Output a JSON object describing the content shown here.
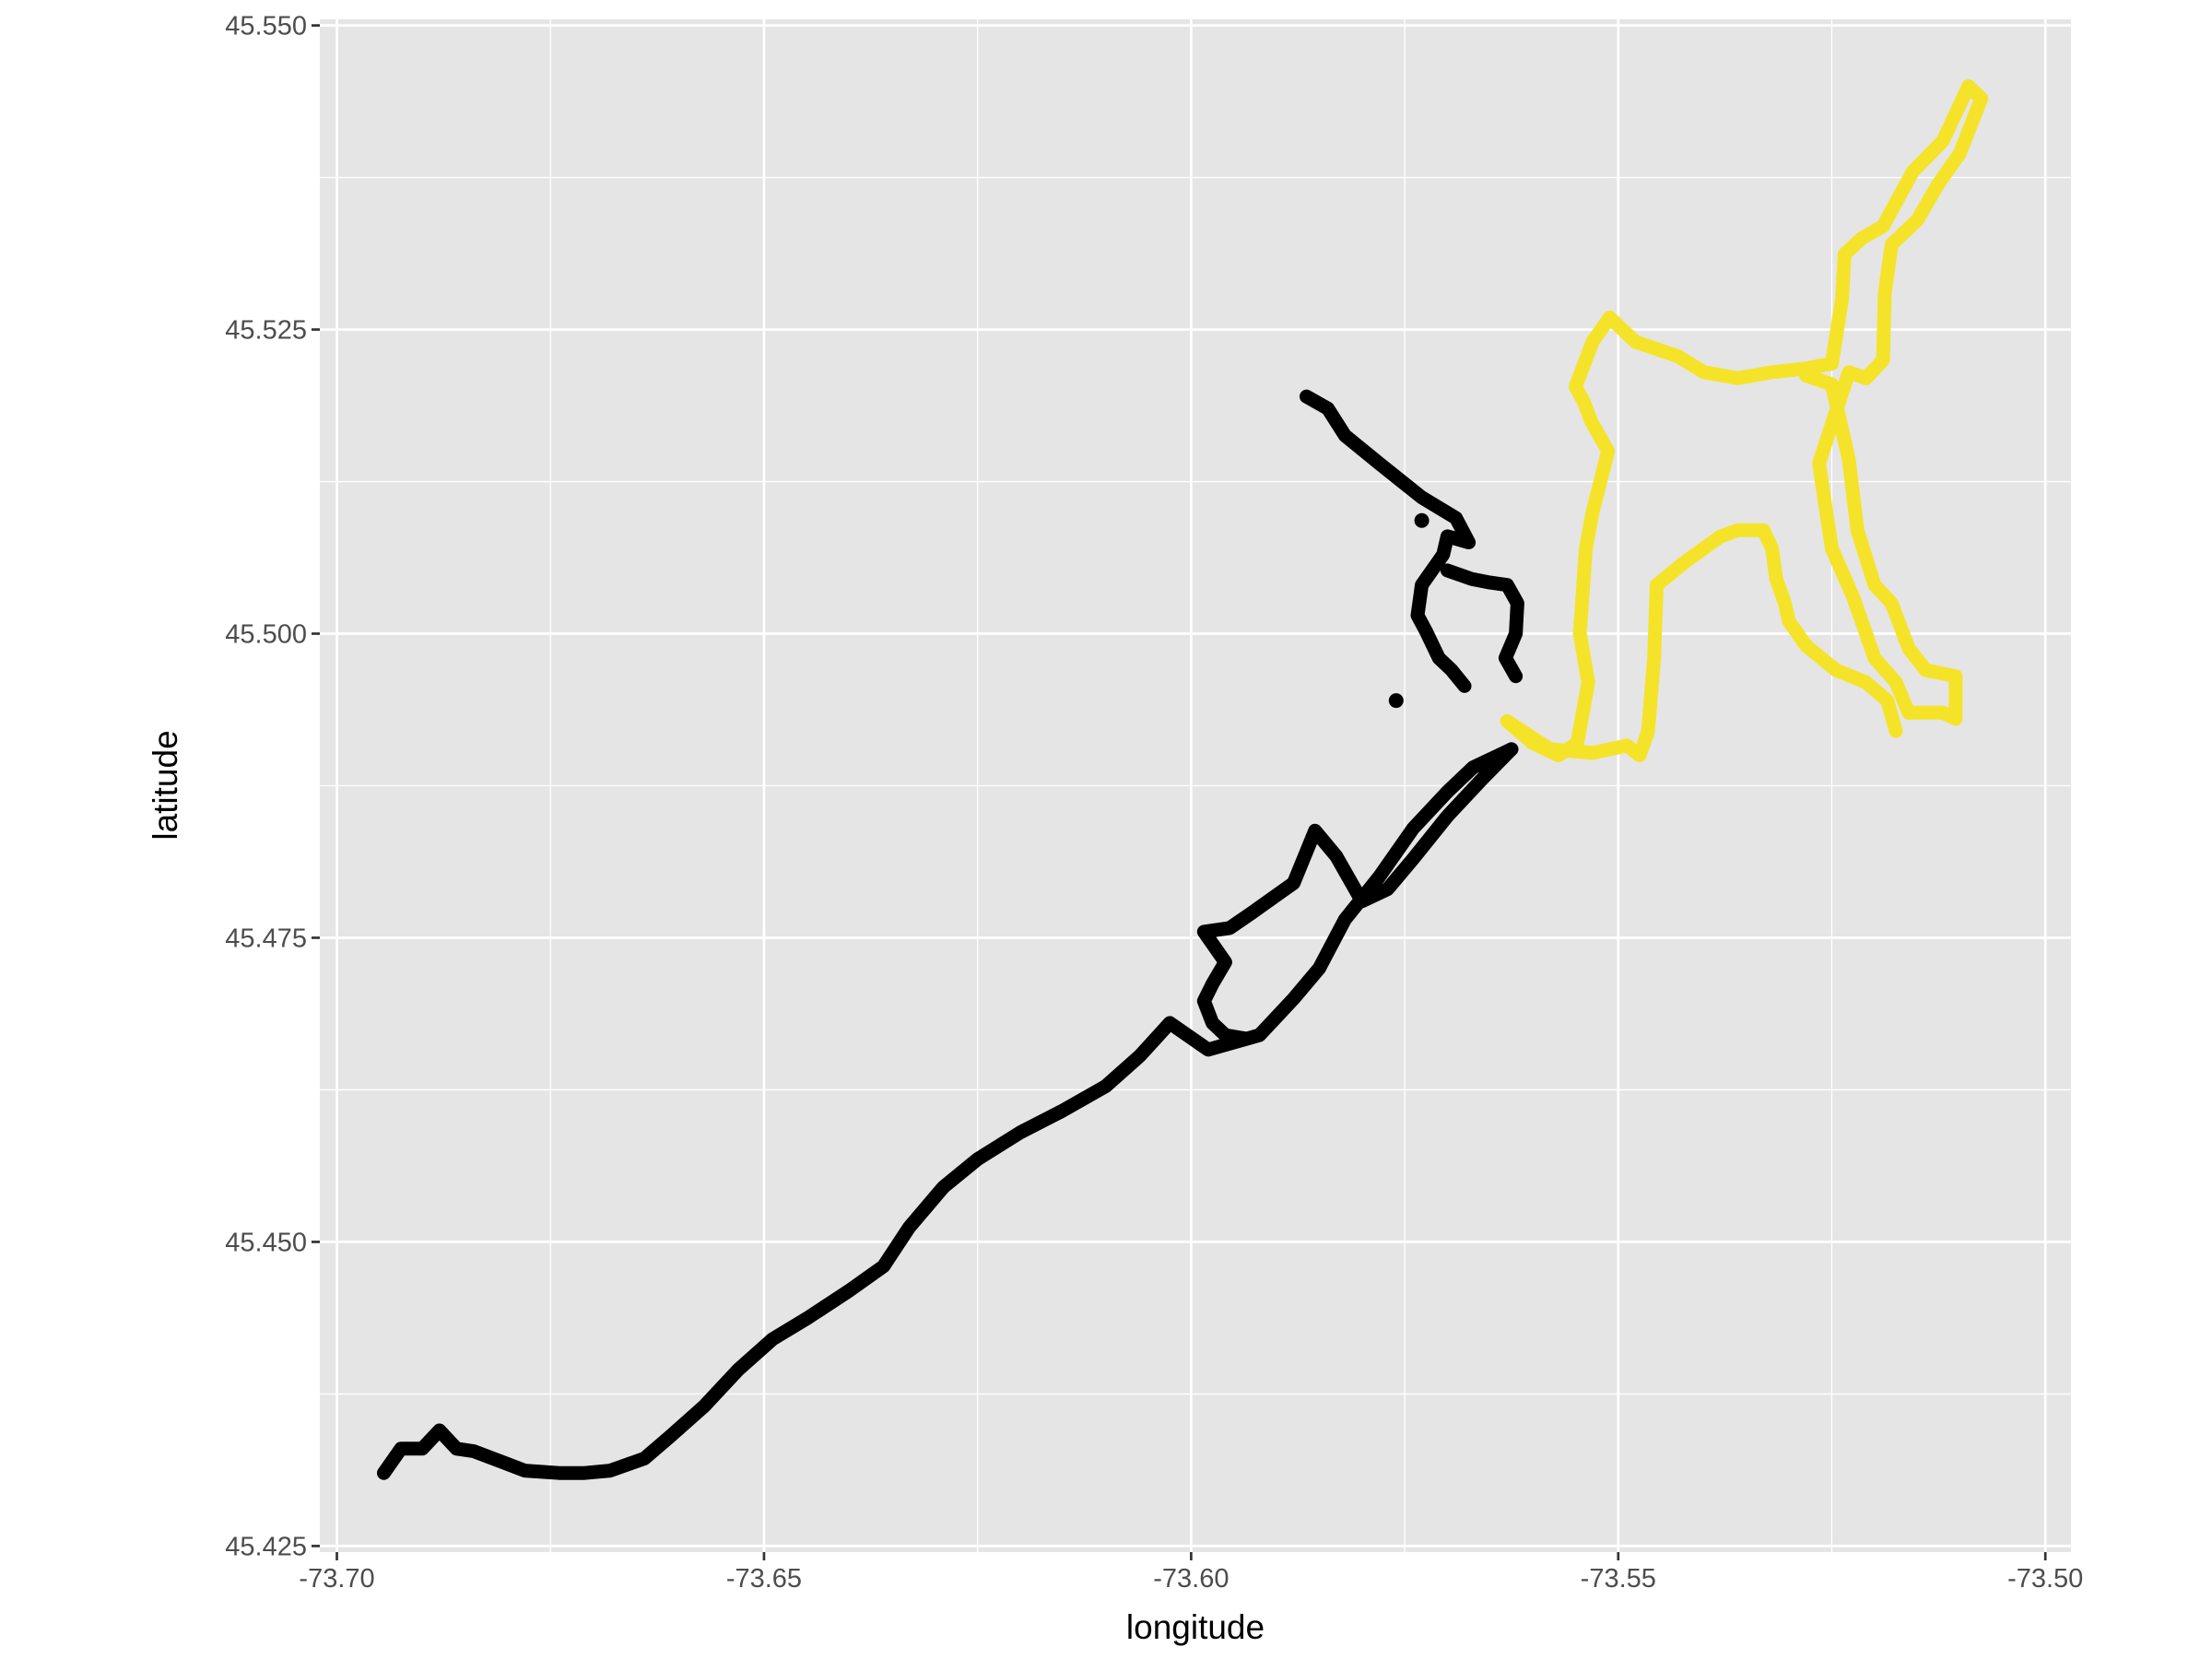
{
  "chart_data": {
    "type": "scatter",
    "title": "",
    "xlabel": "longitude",
    "ylabel": "latitude",
    "xlim": [
      -73.702,
      -73.497
    ],
    "ylim": [
      45.4245,
      45.5505
    ],
    "x_ticks": [
      -73.7,
      -73.65,
      -73.6,
      -73.55,
      -73.5
    ],
    "x_tick_labels": [
      "-73.70",
      "-73.65",
      "-73.60",
      "-73.55",
      "-73.50"
    ],
    "y_ticks": [
      45.425,
      45.45,
      45.475,
      45.5,
      45.525,
      45.55
    ],
    "y_tick_labels": [
      "45.425",
      "45.450",
      "45.475",
      "45.500",
      "45.525",
      "45.550"
    ],
    "grid": true,
    "legend": "none",
    "colors": {
      "panel": "#e5e5e5",
      "grid": "#ffffff",
      "axis_tick": "#333333"
    },
    "series": [
      {
        "color": "#000000",
        "segments": [
          [
            [
              -73.6945,
              45.431
            ],
            [
              -73.6925,
              45.433
            ],
            [
              -73.69,
              45.433
            ],
            [
              -73.688,
              45.4345
            ],
            [
              -73.686,
              45.433
            ],
            [
              -73.684,
              45.4328
            ],
            [
              -73.681,
              45.432
            ],
            [
              -73.678,
              45.4312
            ],
            [
              -73.674,
              45.431
            ],
            [
              -73.671,
              45.431
            ],
            [
              -73.668,
              45.4312
            ],
            [
              -73.664,
              45.4322
            ],
            [
              -73.661,
              45.434
            ],
            [
              -73.657,
              45.4365
            ],
            [
              -73.653,
              45.4395
            ],
            [
              -73.649,
              45.442
            ],
            [
              -73.645,
              45.4437
            ],
            [
              -73.64,
              45.446
            ],
            [
              -73.636,
              45.448
            ],
            [
              -73.633,
              45.4512
            ],
            [
              -73.629,
              45.4545
            ],
            [
              -73.625,
              45.4568
            ],
            [
              -73.62,
              45.459
            ],
            [
              -73.615,
              45.4608
            ],
            [
              -73.61,
              45.4628
            ],
            [
              -73.606,
              45.4653
            ],
            [
              -73.6025,
              45.468
            ],
            [
              -73.598,
              45.4658
            ],
            [
              -73.592,
              45.467
            ],
            [
              -73.588,
              45.47
            ],
            [
              -73.585,
              45.4725
            ],
            [
              -73.582,
              45.4765
            ],
            [
              -73.578,
              45.48
            ],
            [
              -73.574,
              45.484
            ],
            [
              -73.57,
              45.487
            ],
            [
              -73.567,
              45.489
            ],
            [
              -73.564,
              45.49
            ],
            [
              -73.5625,
              45.4905
            ]
          ],
          [
            [
              -73.5625,
              45.4905
            ],
            [
              -73.566,
              45.488
            ],
            [
              -73.57,
              45.485
            ],
            [
              -73.574,
              45.4815
            ],
            [
              -73.577,
              45.479
            ],
            [
              -73.58,
              45.478
            ],
            [
              -73.583,
              45.4817
            ],
            [
              -73.5855,
              45.4838
            ],
            [
              -73.588,
              45.4795
            ],
            [
              -73.593,
              45.477
            ],
            [
              -73.5955,
              45.4758
            ],
            [
              -73.5985,
              45.4755
            ],
            [
              -73.596,
              45.473
            ],
            [
              -73.5975,
              45.4712
            ],
            [
              -73.5985,
              45.4698
            ],
            [
              -73.5975,
              45.468
            ],
            [
              -73.596,
              45.467
            ],
            [
              -73.5935,
              45.4667
            ]
          ],
          [
            [
              -73.5865,
              45.5195
            ],
            [
              -73.584,
              45.5185
            ],
            [
              -73.582,
              45.5163
            ],
            [
              -73.578,
              45.514
            ],
            [
              -73.573,
              45.5112
            ],
            [
              -73.569,
              45.5095
            ],
            [
              -73.5675,
              45.5075
            ],
            [
              -73.57,
              45.508
            ],
            [
              -73.5705,
              45.5065
            ],
            [
              -73.5715,
              45.5055
            ],
            [
              -73.573,
              45.504
            ],
            [
              -73.5735,
              45.5015
            ],
            [
              -73.5725,
              45.5002
            ],
            [
              -73.571,
              45.498
            ],
            [
              -73.5695,
              45.497
            ],
            [
              -73.568,
              45.4957
            ]
          ],
          [
            [
              -73.57,
              45.5052
            ],
            [
              -73.5672,
              45.5045
            ],
            [
              -73.565,
              45.5042
            ],
            [
              -73.563,
              45.504
            ],
            [
              -73.5618,
              45.5025
            ],
            [
              -73.562,
              45.5
            ],
            [
              -73.5632,
              45.498
            ],
            [
              -73.562,
              45.4965
            ]
          ],
          [
            [
              -73.576,
              45.4945
            ],
            [
              -73.5755,
              45.4935
            ]
          ],
          [
            [
              -73.573,
              45.5093
            ],
            [
              -73.5725,
              45.5095
            ]
          ]
        ]
      },
      {
        "color": "#f5e32a",
        "segments": [
          [
            [
              -73.563,
              45.4928
            ],
            [
              -73.56,
              45.491
            ],
            [
              -73.557,
              45.49
            ],
            [
              -73.5548,
              45.491
            ],
            [
              -73.5535,
              45.496
            ],
            [
              -73.5545,
              45.5
            ],
            [
              -73.5538,
              45.507
            ],
            [
              -73.553,
              45.51
            ],
            [
              -73.5512,
              45.515
            ],
            [
              -73.5532,
              45.5175
            ],
            [
              -73.554,
              45.519
            ],
            [
              -73.555,
              45.5203
            ],
            [
              -73.553,
              45.524
            ],
            [
              -73.551,
              45.526
            ],
            [
              -73.548,
              45.524
            ],
            [
              -73.543,
              45.5228
            ],
            [
              -73.54,
              45.5215
            ],
            [
              -73.536,
              45.521
            ],
            [
              -73.532,
              45.5215
            ],
            [
              -73.528,
              45.5218
            ],
            [
              -73.525,
              45.5222
            ],
            [
              -73.5238,
              45.5275
            ],
            [
              -73.5235,
              45.5312
            ],
            [
              -73.5215,
              45.5325
            ],
            [
              -73.519,
              45.5335
            ],
            [
              -73.5155,
              45.538
            ],
            [
              -73.512,
              45.5405
            ],
            [
              -73.509,
              45.545
            ],
            [
              -73.5075,
              45.544
            ],
            [
              -73.51,
              45.5395
            ],
            [
              -73.5125,
              45.537
            ],
            [
              -73.515,
              45.534
            ],
            [
              -73.518,
              45.532
            ],
            [
              -73.5188,
              45.528
            ],
            [
              -73.519,
              45.5225
            ],
            [
              -73.521,
              45.521
            ],
            [
              -73.523,
              45.5215
            ],
            [
              -73.5265,
              45.514
            ],
            [
              -73.525,
              45.507
            ],
            [
              -73.5225,
              45.503
            ],
            [
              -73.52,
              45.498
            ],
            [
              -73.5175,
              45.496
            ],
            [
              -73.516,
              45.4935
            ],
            [
              -73.512,
              45.4935
            ],
            [
              -73.5105,
              45.493
            ],
            [
              -73.5105,
              45.4965
            ],
            [
              -73.514,
              45.497
            ],
            [
              -73.516,
              45.4988
            ],
            [
              -73.518,
              45.5025
            ],
            [
              -73.52,
              45.504
            ],
            [
              -73.522,
              45.5085
            ],
            [
              -73.523,
              45.5143
            ],
            [
              -73.525,
              45.5205
            ],
            [
              -73.528,
              45.5212
            ]
          ],
          [
            [
              -73.563,
              45.4928
            ],
            [
              -73.558,
              45.4905
            ],
            [
              -73.553,
              45.4902
            ],
            [
              -73.549,
              45.4908
            ],
            [
              -73.5475,
              45.49
            ],
            [
              -73.5465,
              45.492
            ],
            [
              -73.5458,
              45.498
            ],
            [
              -73.5455,
              45.504
            ],
            [
              -73.542,
              45.506
            ],
            [
              -73.538,
              45.508
            ],
            [
              -73.536,
              45.5085
            ],
            [
              -73.533,
              45.5085
            ],
            [
              -73.532,
              45.507
            ],
            [
              -73.5315,
              45.5045
            ],
            [
              -73.5305,
              45.5025
            ],
            [
              -73.53,
              45.501
            ],
            [
              -73.528,
              45.499
            ],
            [
              -73.5245,
              45.497
            ],
            [
              -73.521,
              45.496
            ],
            [
              -73.5185,
              45.4945
            ],
            [
              -73.5175,
              45.492
            ]
          ]
        ]
      }
    ]
  }
}
